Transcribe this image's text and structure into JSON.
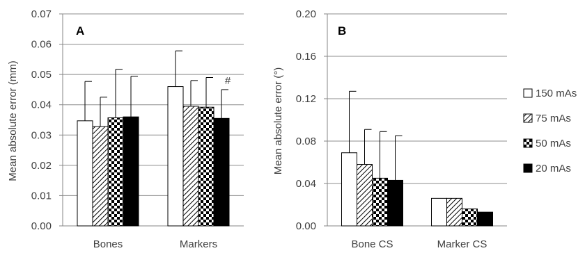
{
  "legend": [
    {
      "name": "150 mAs",
      "pattern": "white"
    },
    {
      "name": "75 mAs",
      "pattern": "diagonal"
    },
    {
      "name": "50 mAs",
      "pattern": "checker"
    },
    {
      "name": "20 mAs",
      "pattern": "black"
    }
  ],
  "chart_data": [
    {
      "type": "bar",
      "panel_label": "A",
      "ylabel": "Mean absolute error (mm)",
      "xlabel": "",
      "ylim": [
        0,
        0.07
      ],
      "yticks": [
        "0.00",
        "0.01",
        "0.02",
        "0.03",
        "0.04",
        "0.05",
        "0.06",
        "0.07"
      ],
      "grid": true,
      "categories": [
        "Bones",
        "Markers"
      ],
      "series": [
        {
          "name": "150 mAs",
          "values": [
            0.0347,
            0.046
          ],
          "errors": [
            0.013,
            0.0118
          ]
        },
        {
          "name": "75 mAs",
          "values": [
            0.0328,
            0.0395
          ],
          "errors": [
            0.0097,
            0.0085
          ]
        },
        {
          "name": "50 mAs",
          "values": [
            0.0357,
            0.0392
          ],
          "errors": [
            0.016,
            0.0098
          ]
        },
        {
          "name": "20 mAs",
          "values": [
            0.036,
            0.0355
          ],
          "errors": [
            0.0134,
            0.0095
          ]
        }
      ],
      "annotations": [
        {
          "text": "#",
          "category": "Markers",
          "series": "20 mAs"
        }
      ]
    },
    {
      "type": "bar",
      "panel_label": "B",
      "ylabel": "Mean absolute error (°)",
      "xlabel": "",
      "ylim": [
        0,
        0.2
      ],
      "yticks": [
        "0.00",
        "0.04",
        "0.08",
        "0.12",
        "0.16",
        "0.20"
      ],
      "grid": true,
      "categories": [
        "Bone CS",
        "Marker CS"
      ],
      "series": [
        {
          "name": "150 mAs",
          "values": [
            0.069,
            0.026
          ],
          "errors": [
            0.058,
            0
          ]
        },
        {
          "name": "75 mAs",
          "values": [
            0.058,
            0.026
          ],
          "errors": [
            0.033,
            0
          ]
        },
        {
          "name": "50 mAs",
          "values": [
            0.045,
            0.016
          ],
          "errors": [
            0.044,
            0
          ]
        },
        {
          "name": "20 mAs",
          "values": [
            0.043,
            0.013
          ],
          "errors": [
            0.042,
            0
          ]
        }
      ],
      "annotations": []
    }
  ],
  "colors": {
    "axis": "#868686",
    "grid": "#8c8c8c",
    "bar_stroke": "#000000",
    "text": "#404040"
  }
}
